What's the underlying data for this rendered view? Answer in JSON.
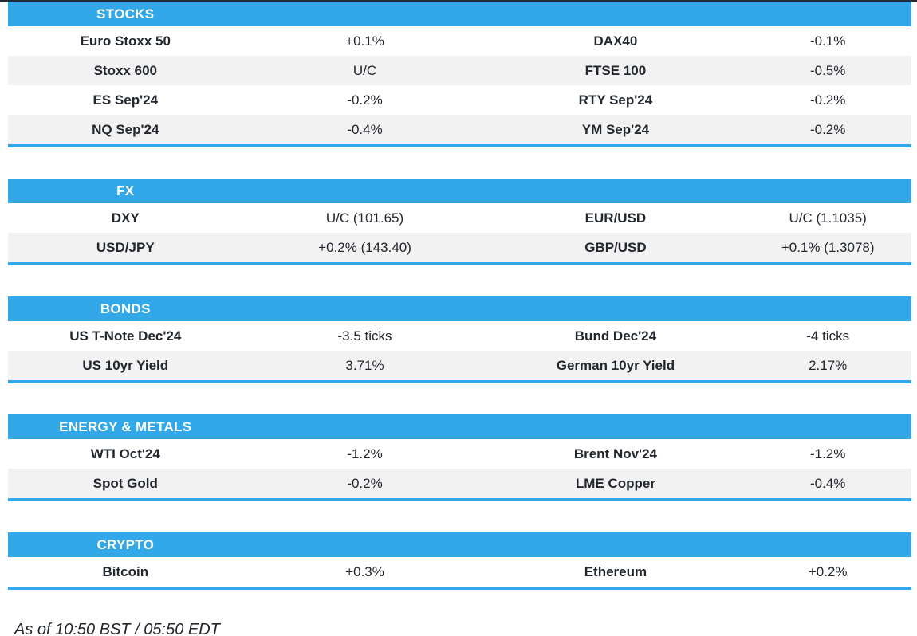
{
  "meta": {
    "as_of": "As of 10:50 BST / 05:50 EDT"
  },
  "colors": {
    "accent_blue": "#32A8E8",
    "row_alt_gray": "#F2F2F2",
    "text_dark": "#23272E",
    "top_line": "#232B36",
    "header_text": "#FFFFFF"
  },
  "sections": [
    {
      "title": "STOCKS",
      "rows": [
        [
          "Euro Stoxx 50",
          "+0.1%",
          "DAX40",
          "-0.1%"
        ],
        [
          "Stoxx 600",
          "U/C",
          "FTSE 100",
          "-0.5%"
        ],
        [
          "ES Sep'24",
          "-0.2%",
          "RTY Sep'24",
          "-0.2%"
        ],
        [
          "NQ Sep'24",
          "-0.4%",
          "YM Sep'24",
          "-0.2%"
        ]
      ]
    },
    {
      "title": "FX",
      "rows": [
        [
          "DXY",
          "U/C (101.65)",
          "EUR/USD",
          "U/C (1.1035)"
        ],
        [
          "USD/JPY",
          "+0.2% (143.40)",
          "GBP/USD",
          "+0.1% (1.3078)"
        ]
      ]
    },
    {
      "title": "BONDS",
      "rows": [
        [
          "US T-Note Dec'24",
          "-3.5 ticks",
          "Bund Dec'24",
          "-4 ticks"
        ],
        [
          "US 10yr Yield",
          "3.71%",
          "German 10yr Yield",
          "2.17%"
        ]
      ]
    },
    {
      "title": "ENERGY & METALS",
      "rows": [
        [
          "WTI Oct'24",
          "-1.2%",
          "Brent Nov'24",
          "-1.2%"
        ],
        [
          "Spot Gold",
          "-0.2%",
          "LME Copper",
          "-0.4%"
        ]
      ]
    },
    {
      "title": "CRYPTO",
      "rows": [
        [
          "Bitcoin",
          "+0.3%",
          "Ethereum",
          "+0.2%"
        ]
      ]
    }
  ]
}
